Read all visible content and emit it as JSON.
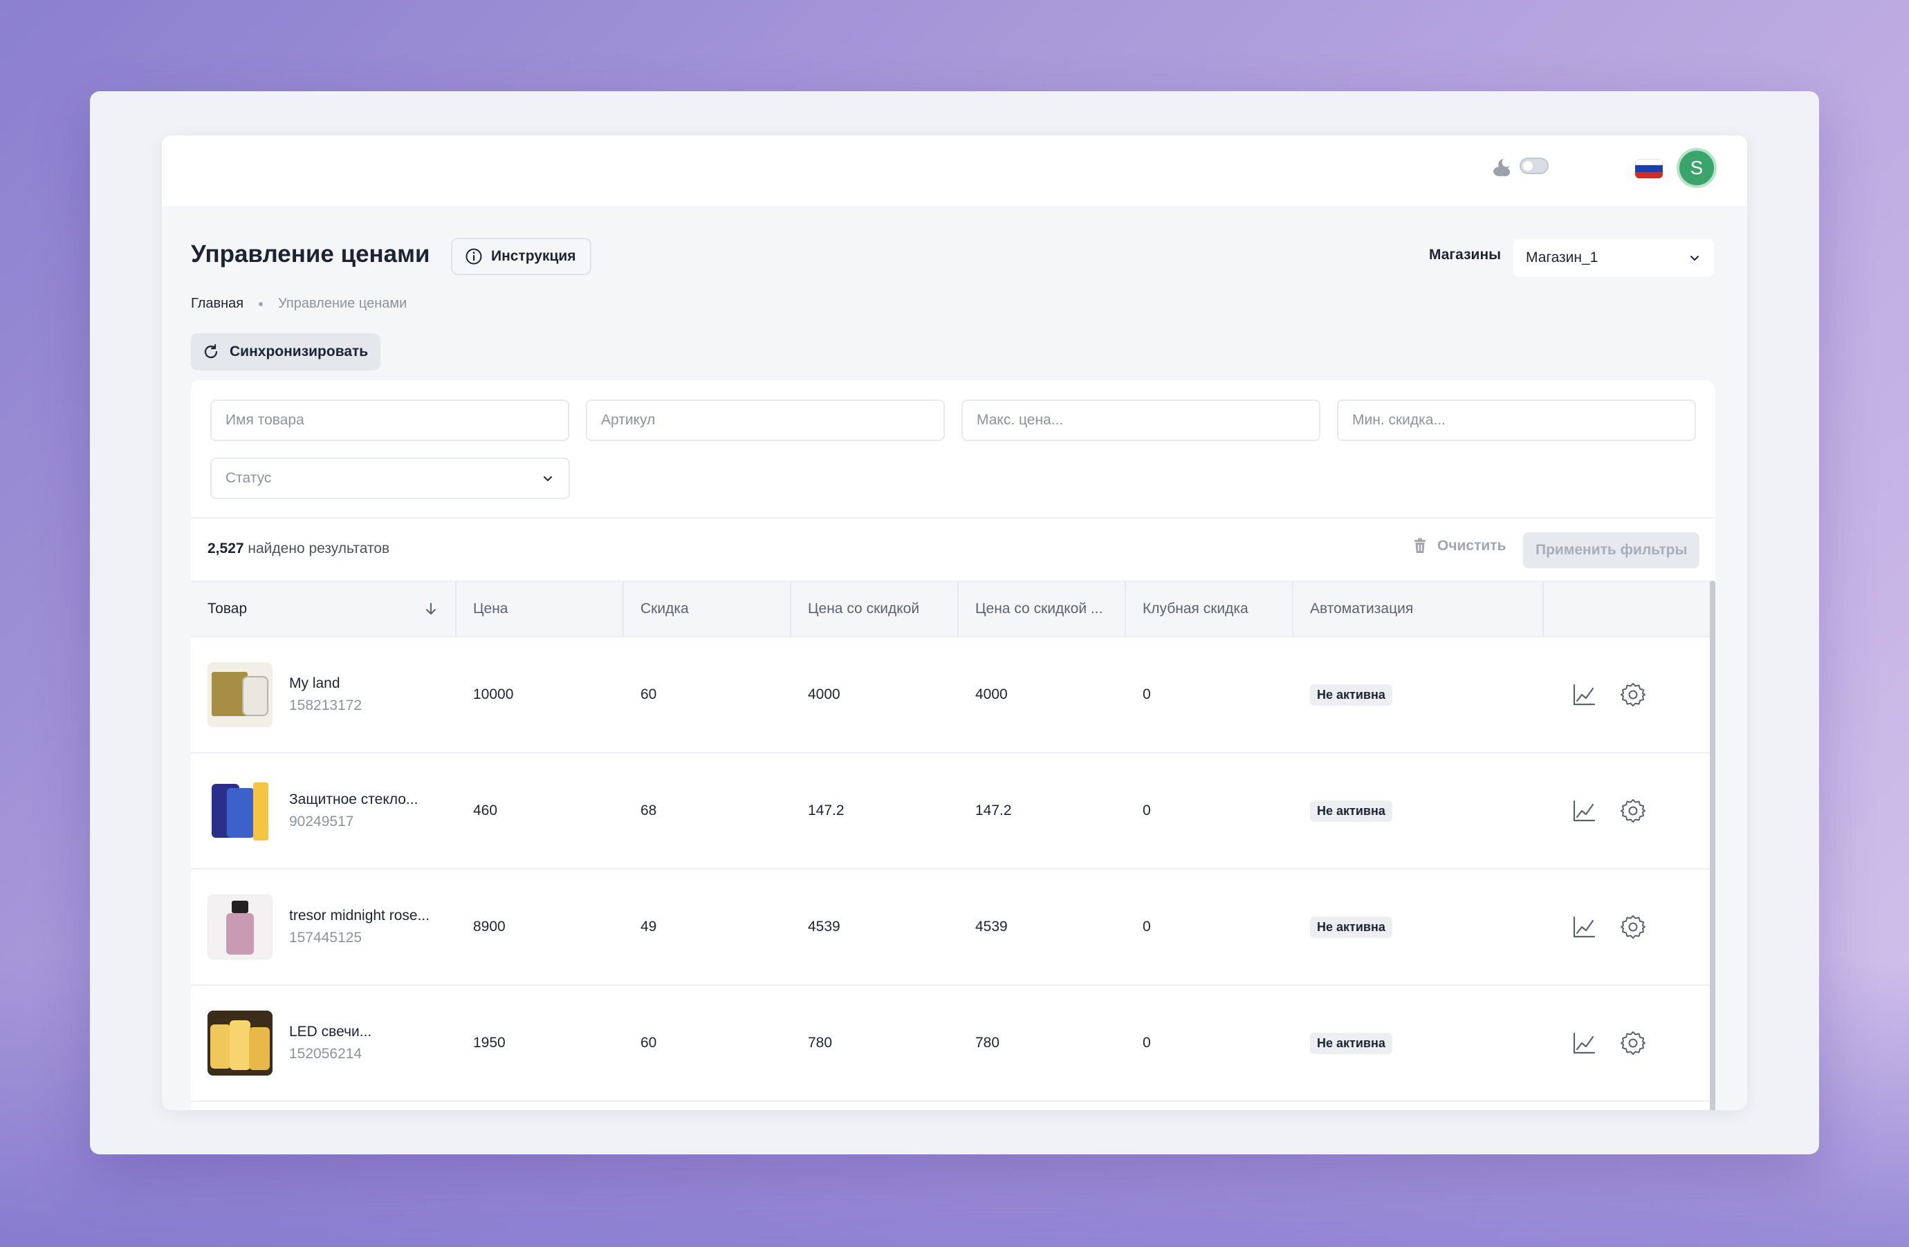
{
  "header": {
    "theme_icon": "moon-cloud-icon",
    "language_flag": "russia-flag-icon",
    "avatar_initial": "S"
  },
  "page": {
    "title": "Управление ценами",
    "instruction_label": "Инструкция",
    "stores_label": "Магазины",
    "store_selected": "Магазин_1",
    "breadcrumb": {
      "home": "Главная",
      "current": "Управление ценами"
    },
    "sync_label": "Синхронизировать"
  },
  "filters": {
    "name_placeholder": "Имя товара",
    "article_placeholder": "Артикул",
    "max_price_placeholder": "Макс. цена...",
    "min_discount_placeholder": "Мин. скидка...",
    "status_placeholder": "Статус"
  },
  "results": {
    "count": "2,527",
    "text": "найдено результатов",
    "clear_label": "Очистить",
    "apply_label": "Применить фильтры"
  },
  "table": {
    "columns": [
      "Товар",
      "Цена",
      "Скидка",
      "Цена со скидкой",
      "Цена со скидкой ...",
      "Клубная скидка",
      "Автоматизация"
    ],
    "rows": [
      {
        "name": "My land",
        "sku": "158213172",
        "price": "10000",
        "discount": "60",
        "discounted_price": "4000",
        "discounted_price_2": "4000",
        "club_discount": "0",
        "automation": "Не активна"
      },
      {
        "name": "Защитное стекло...",
        "sku": "90249517",
        "price": "460",
        "discount": "68",
        "discounted_price": "147.2",
        "discounted_price_2": "147.2",
        "club_discount": "0",
        "automation": "Не активна"
      },
      {
        "name": "tresor midnight rose...",
        "sku": "157445125",
        "price": "8900",
        "discount": "49",
        "discounted_price": "4539",
        "discounted_price_2": "4539",
        "club_discount": "0",
        "automation": "Не активна"
      },
      {
        "name": "LED свечи...",
        "sku": "152056214",
        "price": "1950",
        "discount": "60",
        "discounted_price": "780",
        "discounted_price_2": "780",
        "club_discount": "0",
        "automation": "Не активна"
      }
    ]
  },
  "colors": {
    "avatar_bg": "#3aa46a",
    "accent_text": "#1c2434",
    "muted_text": "#8c939d"
  }
}
